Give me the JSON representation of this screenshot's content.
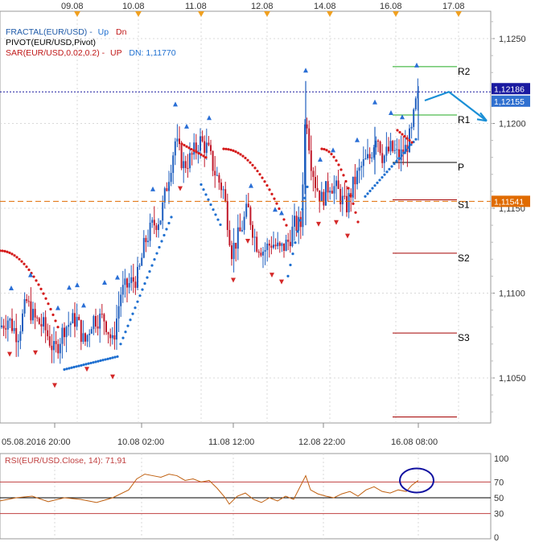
{
  "colors": {
    "background": "#ffffff",
    "grid": "#d8d8d8",
    "bull_candle": "#1f5fbf",
    "bear_candle": "#c0182a",
    "sar_up": "#1e6fd0",
    "sar_down": "#d41a1a",
    "fractal_up": "#2a6fd6",
    "fractal_down": "#d42a2a",
    "pivot_green": "#22aa22",
    "pivot_red": "#a40000",
    "pivot_p": "#000000",
    "bid_line": "#1a1aa0",
    "ask_line": "#e06b00",
    "projection": "#1a8fd6",
    "rsi_line": "#c06010",
    "rsi_level": "#c04040",
    "rsi_circle": "#1010a0",
    "tag_navy": "#1a1aa0",
    "tag_blue": "#3070d0",
    "tag_orange": "#e06b00"
  },
  "legend": {
    "fractal": "FRACTAL(EUR/USD) -",
    "fractal_up": "Up",
    "fractal_dn": "Dn",
    "pivot": "PIVOT(EUR/USD,Pivot)",
    "sar": "SAR(EUR/USD,0.02,0.2) -",
    "sar_up": "UP",
    "sar_dn": "DN: 1,11770"
  },
  "top_axis_dates": [
    "09.08",
    "10.08",
    "11.08",
    "12.08",
    "14.08",
    "16.08",
    "17.08"
  ],
  "bottom_axis_dates": [
    "05.08.2016 20:00",
    "10.08 02:00",
    "11.08 12:00",
    "12.08 22:00",
    "16.08 08:00"
  ],
  "price_axis_labels": [
    "1,1250",
    "1,1200",
    "1,1150",
    "1,1100",
    "1,1050"
  ],
  "price_tags": {
    "top": "1,12186",
    "mid": "1,12155",
    "orange": "1,11541"
  },
  "pivot_level_labels": [
    "R2",
    "R1",
    "P",
    "S1",
    "S2",
    "S3"
  ],
  "rsi": {
    "title": "RSI(EUR/USD.Close, 14): 71,91",
    "axis_labels": [
      "100",
      "70",
      "50",
      "30",
      "0"
    ]
  },
  "chart_data": {
    "type": "candlestick",
    "symbol": "EUR/USD",
    "ylim": [
      1.1023,
      1.1278
    ],
    "x_axis_dates": [
      "05.08.2016 20:00",
      "10.08 02:00",
      "11.08 12:00",
      "12.08 22:00",
      "16.08 08:00"
    ],
    "price_path": [
      [
        0,
        1.108
      ],
      [
        10,
        1.1085
      ],
      [
        22,
        1.1075
      ],
      [
        33,
        1.1095
      ],
      [
        42,
        1.1085
      ],
      [
        55,
        1.108
      ],
      [
        68,
        1.1065
      ],
      [
        80,
        1.108
      ],
      [
        95,
        1.1085
      ],
      [
        105,
        1.107
      ],
      [
        115,
        1.1085
      ],
      [
        130,
        1.1085
      ],
      [
        140,
        1.107
      ],
      [
        150,
        1.11
      ],
      [
        160,
        1.1105
      ],
      [
        172,
        1.111
      ],
      [
        180,
        1.113
      ],
      [
        190,
        1.114
      ],
      [
        200,
        1.1145
      ],
      [
        210,
        1.117
      ],
      [
        218,
        1.119
      ],
      [
        228,
        1.1175
      ],
      [
        238,
        1.118
      ],
      [
        248,
        1.119
      ],
      [
        258,
        1.1185
      ],
      [
        268,
        1.117
      ],
      [
        278,
        1.116
      ],
      [
        288,
        1.1125
      ],
      [
        298,
        1.1135
      ],
      [
        308,
        1.115
      ],
      [
        318,
        1.113
      ],
      [
        328,
        1.1125
      ],
      [
        338,
        1.113
      ],
      [
        348,
        1.1125
      ],
      [
        358,
        1.113
      ],
      [
        366,
        1.114
      ],
      [
        374,
        1.114
      ],
      [
        380,
        1.121
      ],
      [
        386,
        1.118
      ],
      [
        392,
        1.1165
      ],
      [
        400,
        1.1155
      ],
      [
        410,
        1.1165
      ],
      [
        420,
        1.116
      ],
      [
        430,
        1.115
      ],
      [
        440,
        1.1165
      ],
      [
        450,
        1.1175
      ],
      [
        460,
        1.118
      ],
      [
        468,
        1.1195
      ],
      [
        476,
        1.118
      ],
      [
        486,
        1.1185
      ],
      [
        496,
        1.118
      ],
      [
        504,
        1.1185
      ],
      [
        512,
        1.1195
      ],
      [
        516,
        1.121
      ],
      [
        520,
        1.1216
      ]
    ],
    "pivot_levels": {
      "R2": 1.12335,
      "R1": 1.1205,
      "P": 1.1177,
      "S1": 1.1155,
      "S2": 1.11235,
      "S3": 1.10765,
      "S4": 1.1027
    },
    "current_bid": 1.12186,
    "current_ask": 1.12155,
    "dashed_level": 1.11541,
    "sar_dn": 1.1177,
    "projection": [
      [
        520,
        1.12135
      ],
      [
        550,
        1.12186
      ],
      [
        597,
        1.12015
      ]
    ],
    "rsi": {
      "value": 71.91,
      "levels": [
        70,
        50,
        30
      ],
      "ylim": [
        0,
        100
      ],
      "path": [
        [
          0,
          46
        ],
        [
          20,
          50
        ],
        [
          40,
          52
        ],
        [
          60,
          45
        ],
        [
          80,
          50
        ],
        [
          100,
          48
        ],
        [
          120,
          44
        ],
        [
          140,
          50
        ],
        [
          160,
          60
        ],
        [
          170,
          74
        ],
        [
          180,
          80
        ],
        [
          190,
          78
        ],
        [
          200,
          76
        ],
        [
          210,
          80
        ],
        [
          220,
          78
        ],
        [
          230,
          72
        ],
        [
          240,
          74
        ],
        [
          250,
          70
        ],
        [
          260,
          72
        ],
        [
          270,
          62
        ],
        [
          280,
          50
        ],
        [
          285,
          42
        ],
        [
          295,
          52
        ],
        [
          305,
          56
        ],
        [
          315,
          48
        ],
        [
          325,
          44
        ],
        [
          335,
          50
        ],
        [
          345,
          46
        ],
        [
          355,
          52
        ],
        [
          365,
          48
        ],
        [
          372,
          62
        ],
        [
          380,
          78
        ],
        [
          386,
          60
        ],
        [
          395,
          55
        ],
        [
          405,
          52
        ],
        [
          415,
          50
        ],
        [
          425,
          55
        ],
        [
          435,
          58
        ],
        [
          445,
          52
        ],
        [
          455,
          60
        ],
        [
          465,
          64
        ],
        [
          475,
          58
        ],
        [
          485,
          56
        ],
        [
          495,
          60
        ],
        [
          505,
          58
        ],
        [
          512,
          66
        ],
        [
          520,
          72
        ]
      ]
    }
  }
}
